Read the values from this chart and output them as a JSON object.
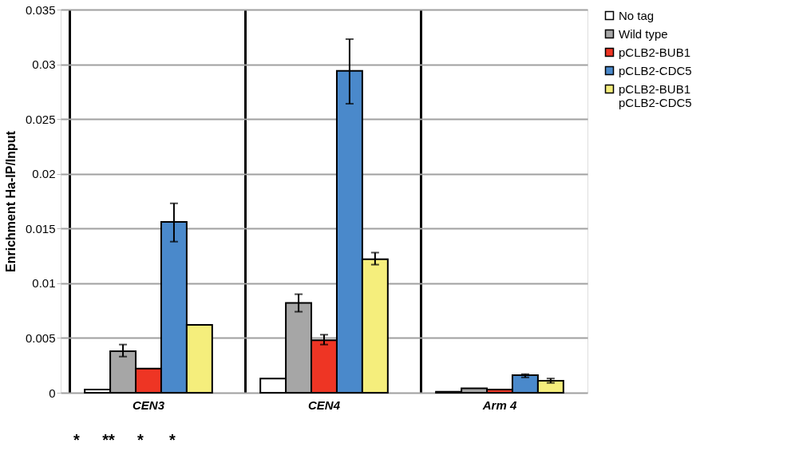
{
  "chart_data": {
    "type": "bar",
    "ylabel": "Enrichment Ha-IP/Input",
    "categories": [
      "CEN3",
      "CEN4",
      "Arm 4"
    ],
    "ylim": [
      0,
      0.035
    ],
    "yticks": [
      0,
      0.005,
      0.01,
      0.015,
      0.02,
      0.025,
      0.03,
      0.035
    ],
    "grid": "y",
    "legend": "right",
    "series": [
      {
        "name": "No tag",
        "color": "#ffffff",
        "values": [
          0.0003,
          0.0013,
          0.0001
        ],
        "errors": [
          null,
          null,
          null
        ]
      },
      {
        "name": "Wild type",
        "color": "#a6a6a6",
        "values": [
          0.0038,
          0.0082,
          0.0004
        ],
        "errors": [
          [
            0.0033,
            0.0044
          ],
          [
            0.0074,
            0.009
          ],
          null
        ]
      },
      {
        "name": "pCLB2-BUB1",
        "color": "#ee3524",
        "values": [
          0.0022,
          0.0048,
          0.0003
        ],
        "errors": [
          null,
          [
            0.0044,
            0.0053
          ],
          null
        ]
      },
      {
        "name": "pCLB2-CDC5",
        "color": "#4a89cb",
        "values": [
          0.0156,
          0.0294,
          0.0016
        ],
        "errors": [
          [
            0.0138,
            0.0173
          ],
          [
            0.0264,
            0.0323
          ],
          [
            0.0014,
            0.0017
          ]
        ]
      },
      {
        "name": "pCLB2-BUB1\npCLB2-CDC5",
        "color": "#f5ee7c",
        "values": [
          0.0062,
          0.0122,
          0.0011
        ],
        "errors": [
          null,
          [
            0.0117,
            0.0128
          ],
          [
            0.0009,
            0.0013
          ]
        ]
      }
    ],
    "annotations": [
      "*",
      "**",
      "*",
      "*"
    ]
  }
}
